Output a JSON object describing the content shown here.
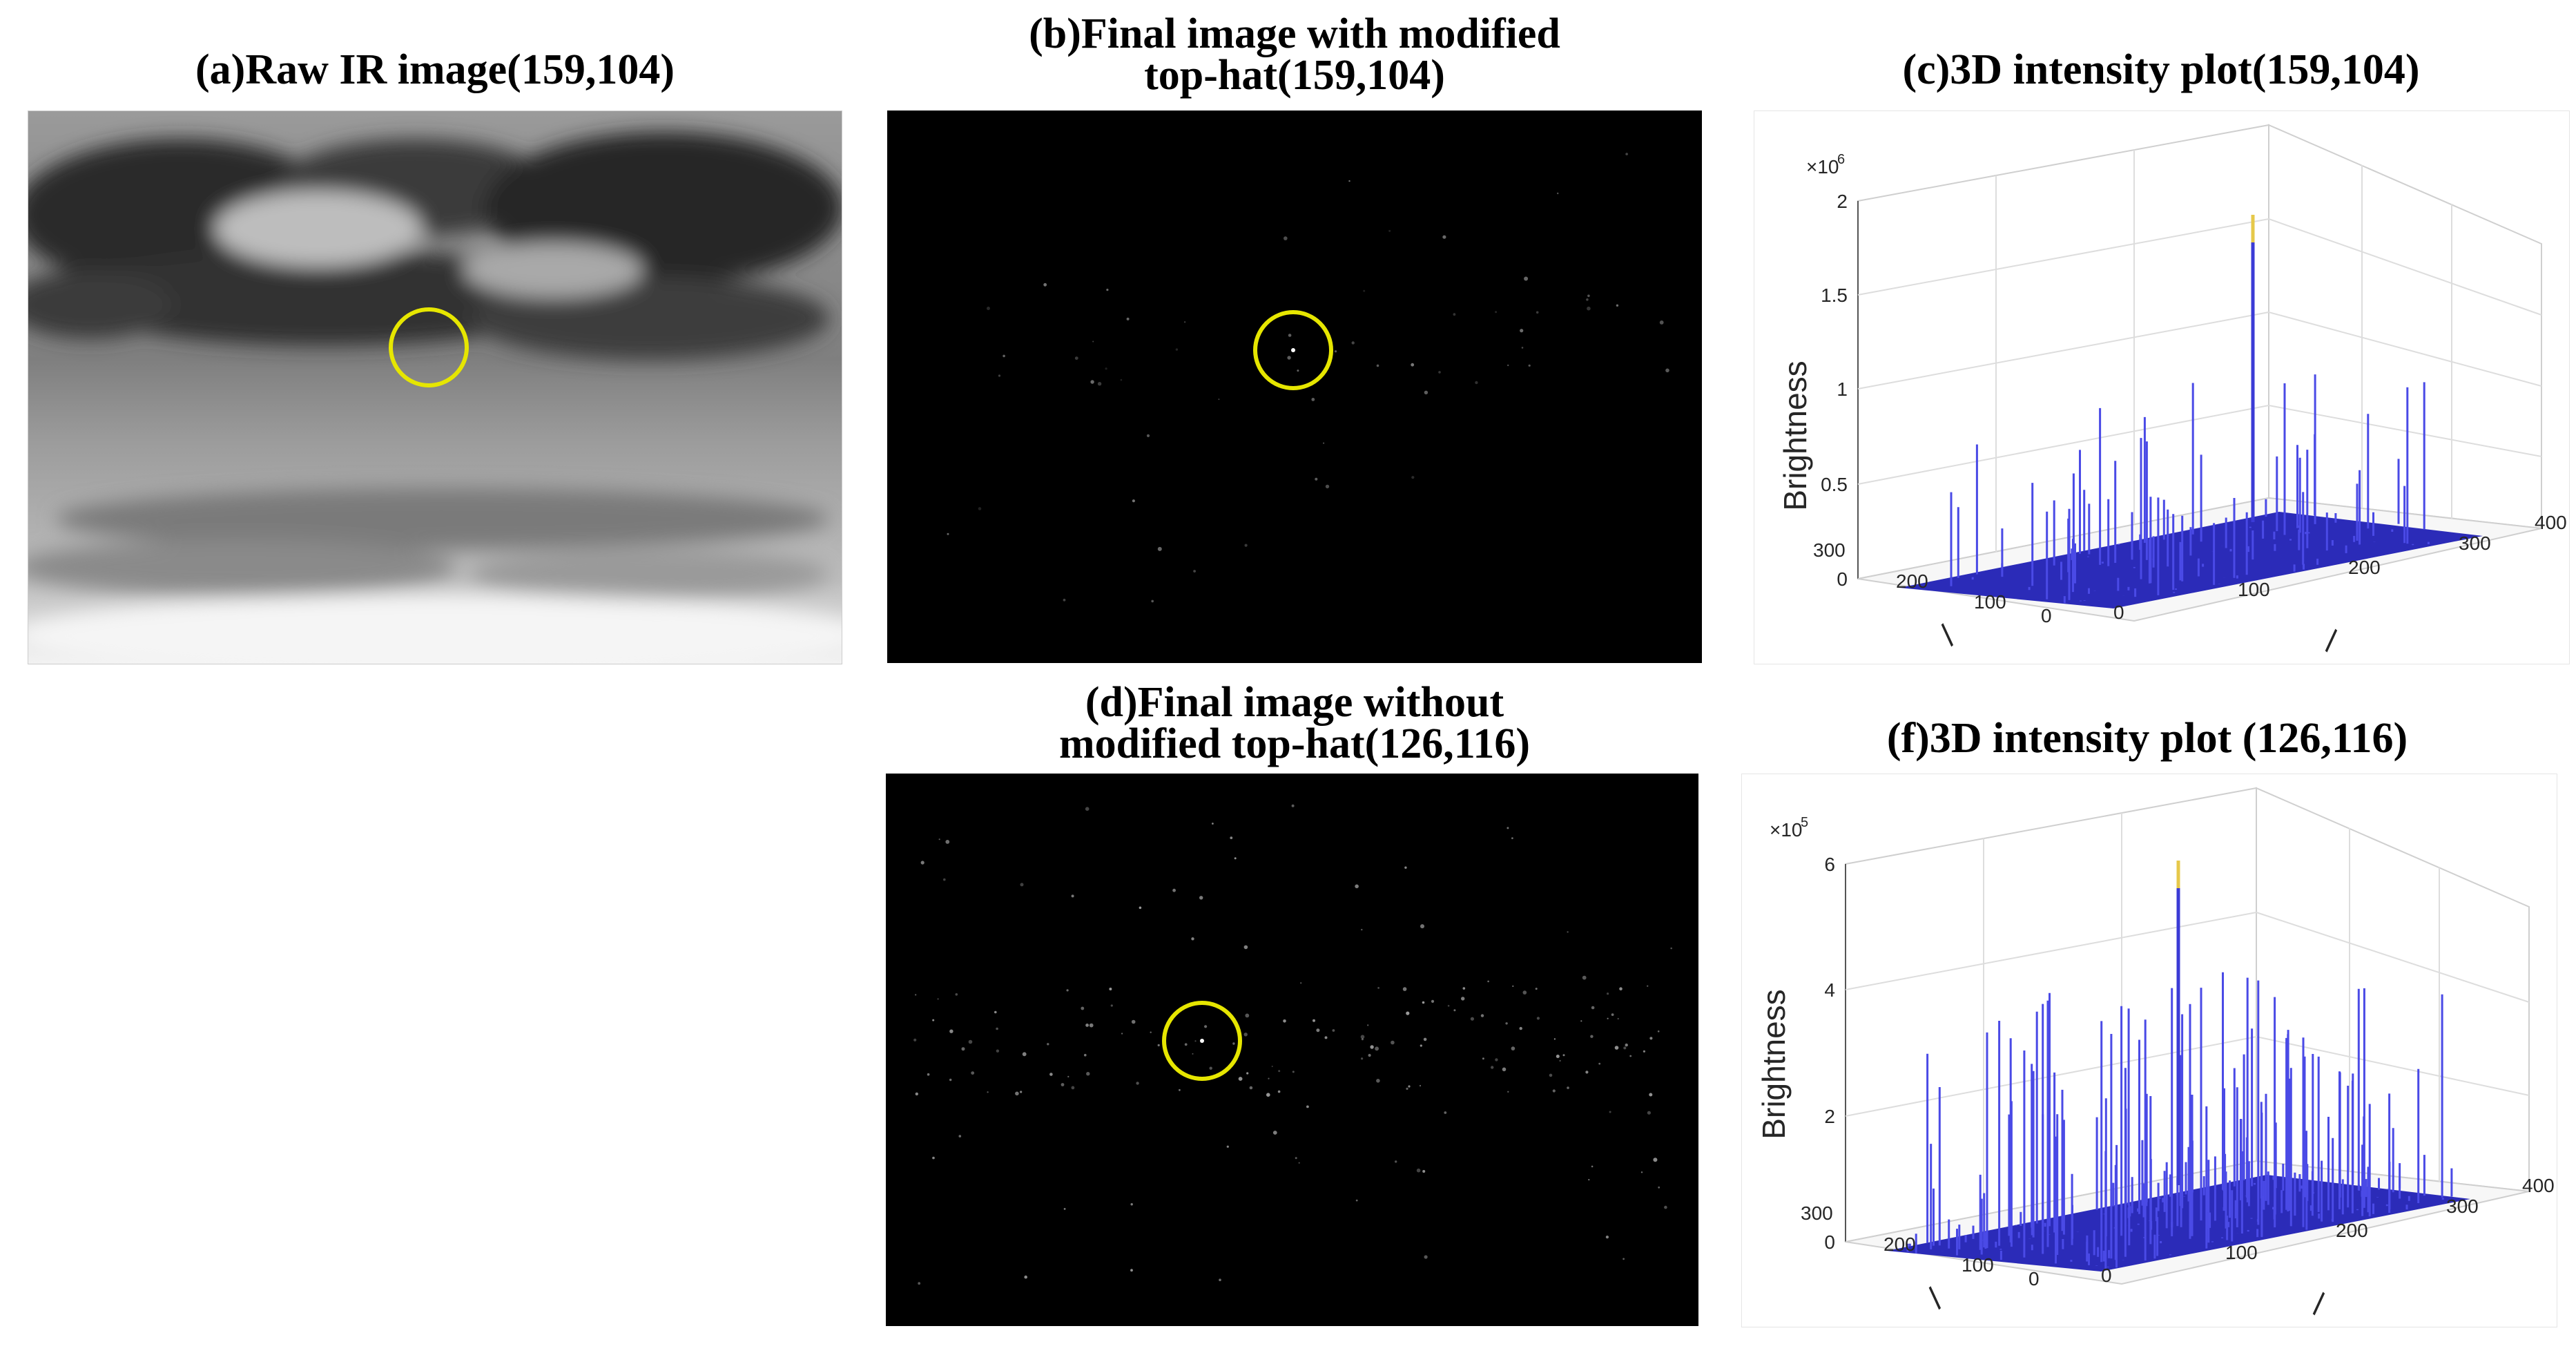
{
  "panels": {
    "a": {
      "title": "(a)Raw IR image(159,104)"
    },
    "b": {
      "title_line1": "(b)Final image with modified",
      "title_line2": "top-hat(159,104)"
    },
    "c": {
      "title": "(c)3D intensity plot(159,104)",
      "exponent_label": "×10",
      "exponent_power": "6",
      "z_label": "Brightness",
      "z_ticks": [
        "2",
        "1.5",
        "1",
        "0.5",
        "0"
      ],
      "y_ticks": [
        "300",
        "200",
        "100",
        "0"
      ],
      "x_ticks": [
        "0",
        "100",
        "200",
        "300",
        "400"
      ]
    },
    "d": {
      "title_line1": "(d)Final image without",
      "title_line2": "modified top-hat(126,116)"
    },
    "f": {
      "title": "(f)3D intensity plot (126,116)",
      "exponent_label": "×10",
      "exponent_power": "5",
      "z_label": "Brightness",
      "z_ticks": [
        "6",
        "4",
        "2",
        "0"
      ],
      "y_ticks": [
        "300",
        "200",
        "100",
        "0"
      ],
      "x_ticks": [
        "0",
        "100",
        "200",
        "300",
        "400"
      ]
    }
  },
  "colors": {
    "marker": "#e6e600",
    "surface": "#2b2bb8",
    "spike": "#4a4ae6"
  }
}
